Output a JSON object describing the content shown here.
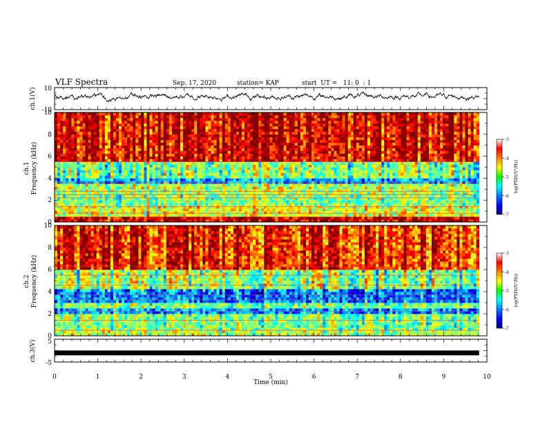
{
  "header": {
    "title": "VLF Spectra",
    "date": "Sep. 17, 2020",
    "station": "station= KAP",
    "start": "start  UT =   11: 0  : 1"
  },
  "chart_data": [
    {
      "type": "line",
      "panel": "ch1-waveform",
      "ylabel": "ch.1(V)",
      "ylim": [
        -10,
        10
      ],
      "y_ticks": [
        "10",
        "-10"
      ],
      "xlim": [
        0,
        10
      ],
      "series": [
        {
          "trace_range_v": [
            -3,
            7
          ],
          "data_extent_min": [
            0,
            9.82
          ]
        }
      ],
      "color": "#000000"
    },
    {
      "type": "heatmap",
      "panel": "ch1-spectrogram",
      "ylabel": "ch.1\nFrequency (kHz)",
      "ylabel_line1": "ch.1",
      "ylabel_line2": "Frequency (kHz)",
      "ylim": [
        0,
        10
      ],
      "y_ticks": [
        "0",
        "2",
        "4",
        "6",
        "8",
        "10"
      ],
      "xlim": [
        0,
        10
      ],
      "data_extent_min": [
        0,
        9.82
      ],
      "bands": [
        {
          "f_khz": [
            0,
            0.6
          ],
          "level": -3.3
        },
        {
          "f_khz": [
            0.6,
            1.5
          ],
          "level": -4.6
        },
        {
          "f_khz": [
            1.5,
            2.6
          ],
          "level": -5.0
        },
        {
          "f_khz": [
            2.6,
            3.4
          ],
          "level": -4.8
        },
        {
          "f_khz": [
            3.4,
            4.0
          ],
          "level": -5.8
        },
        {
          "f_khz": [
            4.0,
            5.4
          ],
          "level": -5.0
        },
        {
          "f_khz": [
            5.4,
            10.0
          ],
          "level": -3.4
        }
      ],
      "lines_khz": [
        0.8,
        1.4,
        2.2,
        2.5,
        2.8,
        3.6,
        5.5
      ]
    },
    {
      "type": "heatmap",
      "panel": "ch2-spectrogram",
      "ylabel": "ch.2\nFrequency (kHz)",
      "ylabel_line1": "ch.2",
      "ylabel_line2": "Frequency (kHz)",
      "ylim": [
        0,
        10
      ],
      "y_ticks": [
        "0",
        "2",
        "4",
        "6",
        "8",
        "10"
      ],
      "xlim": [
        0,
        10
      ],
      "data_extent_min": [
        0,
        9.82
      ],
      "bands": [
        {
          "f_khz": [
            0,
            0.6
          ],
          "level": -4.8
        },
        {
          "f_khz": [
            0.6,
            2.0
          ],
          "level": -5.0
        },
        {
          "f_khz": [
            2.0,
            2.4
          ],
          "level": -5.9
        },
        {
          "f_khz": [
            2.4,
            3.0
          ],
          "level": -5.0
        },
        {
          "f_khz": [
            3.0,
            4.2
          ],
          "level": -6.0
        },
        {
          "f_khz": [
            4.2,
            6.0
          ],
          "level": -4.9
        },
        {
          "f_khz": [
            6.0,
            10.0
          ],
          "level": -3.6
        }
      ],
      "lines_khz": [
        0.5,
        1.4,
        2.2,
        3.3,
        3.7,
        4.6,
        5.5,
        6.3
      ]
    },
    {
      "type": "line",
      "panel": "ch3-waveform",
      "ylabel": "ch.3(V)",
      "ylim": [
        -5,
        5
      ],
      "y_ticks": [
        "5",
        "-5"
      ],
      "xlim": [
        0,
        10
      ],
      "xlabel": "Time (min)",
      "x_ticks": [
        "0",
        "1",
        "2",
        "3",
        "4",
        "5",
        "6",
        "7",
        "8",
        "9",
        "10"
      ],
      "series": [
        {
          "value_v": -1,
          "data_extent_min": [
            0,
            9.82
          ]
        }
      ],
      "color": "#000000"
    }
  ],
  "colorbars": [
    {
      "label": "log(PSD)(V²/Hz)",
      "range": [
        -7,
        -3
      ],
      "ticks": [
        "-3",
        "-4",
        "-5",
        "-6",
        "-7"
      ],
      "colormap": "jet"
    },
    {
      "label": "log(PSD)(V²/Hz)",
      "range": [
        -7,
        -3
      ],
      "ticks": [
        "-3",
        "-4",
        "-5",
        "-6",
        "-7"
      ],
      "colormap": "jet"
    }
  ]
}
